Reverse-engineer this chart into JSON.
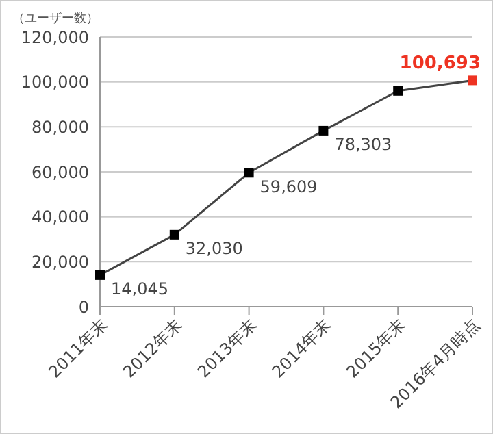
{
  "chart_data": {
    "type": "line",
    "ylabel": "（ユーザー数）",
    "categories": [
      "2011年末",
      "2012年末",
      "2013年末",
      "2014年末",
      "2015年末",
      "2016年4月時点"
    ],
    "series": [
      {
        "color": "#444444",
        "colors": [
          "#000000",
          "#000000",
          "#000000",
          "#000000",
          "#000000",
          "#ee3322"
        ],
        "values": [
          14045,
          32030,
          59609,
          78303,
          96000,
          100693
        ],
        "value_labels": [
          "14,045",
          "32,030",
          "59,609",
          "78,303",
          null,
          "100,693"
        ]
      }
    ],
    "ylim": [
      0,
      120000
    ],
    "yticks": [
      0,
      {
        "value": 20000,
        "label": "20,000"
      },
      {
        "value": 40000,
        "label": "40,000"
      },
      {
        "value": 60000,
        "label": "60,000"
      },
      {
        "value": 80000,
        "label": "80,000"
      },
      {
        "value": 100000,
        "label": "100,000"
      },
      {
        "value": 120000,
        "label": "120,000"
      }
    ],
    "grid": "y",
    "legend": false,
    "marker": "square",
    "line_style": "solid"
  }
}
